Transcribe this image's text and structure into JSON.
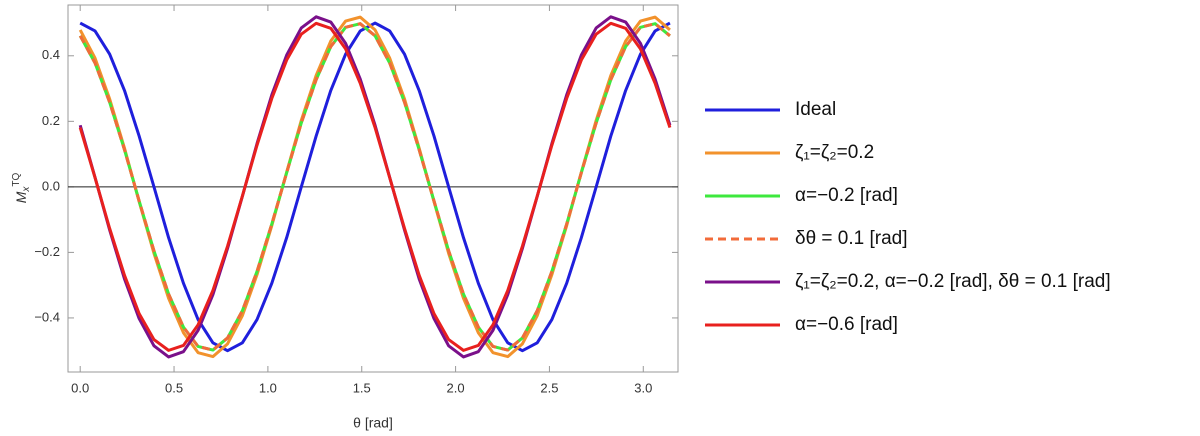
{
  "chart_data": {
    "type": "line",
    "xlabel": "θ [rad]",
    "ylabel": {
      "base": "M",
      "sub": "x",
      "sup": "TQ"
    },
    "xlim": [
      -0.065,
      3.185
    ],
    "ylim": [
      -0.565,
      0.555
    ],
    "xticks": [
      {
        "value": 0,
        "label": "0.0"
      },
      0.5,
      {
        "value": 1,
        "label": "1.0"
      },
      1.5,
      {
        "value": 2,
        "label": "2.0"
      },
      2.5,
      {
        "value": 3,
        "label": "3.0"
      }
    ],
    "yticks": [
      {
        "value": -0.4,
        "label": "−0.4"
      },
      {
        "value": -0.2,
        "label": "−0.2"
      },
      {
        "value": 0,
        "label": "0.0"
      },
      0.2,
      0.4
    ],
    "x": [
      0,
      0.079,
      0.157,
      0.236,
      0.314,
      0.393,
      0.471,
      0.55,
      0.628,
      0.707,
      0.785,
      0.864,
      0.942,
      1.021,
      1.1,
      1.178,
      1.257,
      1.335,
      1.414,
      1.492,
      1.571,
      1.649,
      1.728,
      1.806,
      1.885,
      1.963,
      2.042,
      2.121,
      2.199,
      2.278,
      2.356,
      2.435,
      2.513,
      2.592,
      2.67,
      2.749,
      2.827,
      2.906,
      2.985,
      3.063,
      3.142
    ],
    "series": [
      {
        "name": "Ideal",
        "color": "#1f1fdc",
        "dash": false,
        "values": [
          0.5,
          0.476,
          0.405,
          0.294,
          0.155,
          0,
          -0.155,
          -0.294,
          -0.405,
          -0.476,
          -0.5,
          -0.476,
          -0.405,
          -0.294,
          -0.155,
          0,
          0.155,
          0.294,
          0.405,
          0.476,
          0.5,
          0.476,
          0.405,
          0.294,
          0.155,
          0,
          -0.155,
          -0.294,
          -0.405,
          -0.476,
          -0.5,
          -0.476,
          -0.405,
          -0.294,
          -0.155,
          0,
          0.155,
          0.294,
          0.405,
          0.476,
          0.5
        ]
      },
      {
        "name": "ζ₁=ζ₂=0.2",
        "color": "#f2922c",
        "dash": false,
        "values": [
          0.479,
          0.393,
          0.268,
          0.118,
          -0.045,
          -0.203,
          -0.34,
          -0.445,
          -0.506,
          -0.518,
          -0.479,
          -0.393,
          -0.268,
          -0.118,
          0.045,
          0.203,
          0.34,
          0.445,
          0.506,
          0.518,
          0.479,
          0.393,
          0.268,
          0.118,
          -0.045,
          -0.203,
          -0.34,
          -0.445,
          -0.506,
          -0.518,
          -0.479,
          -0.393,
          -0.268,
          -0.118,
          0.045,
          0.203,
          0.34,
          0.445,
          0.506,
          0.518,
          0.479
        ]
      },
      {
        "name": "α=−0.2 [rad]",
        "color": "#3ee83e",
        "dash": false,
        "values": [
          0.461,
          0.378,
          0.258,
          0.113,
          -0.043,
          -0.195,
          -0.327,
          -0.428,
          -0.487,
          -0.498,
          -0.461,
          -0.378,
          -0.258,
          -0.113,
          0.043,
          0.195,
          0.327,
          0.428,
          0.487,
          0.498,
          0.461,
          0.378,
          0.258,
          0.113,
          -0.043,
          -0.195,
          -0.327,
          -0.428,
          -0.487,
          -0.498,
          -0.461,
          -0.378,
          -0.258,
          -0.113,
          0.043,
          0.195,
          0.327,
          0.428,
          0.487,
          0.498,
          0.461
        ]
      },
      {
        "name": " δθ = 0.1 [rad]",
        "color": "#f26b3a",
        "dash": true,
        "values": [
          0.461,
          0.378,
          0.258,
          0.113,
          -0.043,
          -0.195,
          -0.327,
          -0.428,
          -0.487,
          -0.498,
          -0.461,
          -0.378,
          -0.258,
          -0.113,
          0.043,
          0.195,
          0.327,
          0.428,
          0.487,
          0.498,
          0.461,
          0.378,
          0.258,
          0.113,
          -0.043,
          -0.195,
          -0.327,
          -0.428,
          -0.487,
          -0.498,
          -0.461,
          -0.378,
          -0.258,
          -0.113,
          0.043,
          0.195,
          0.327,
          0.428,
          0.487,
          0.498,
          0.461
        ]
      },
      {
        "name": "ζ₁=ζ₂=0.2, α=−0.2 [rad], δθ = 0.1 [rad]",
        "color": "#7a108a",
        "dash": false,
        "values": [
          0.188,
          0.029,
          -0.132,
          -0.281,
          -0.402,
          -0.485,
          -0.519,
          -0.503,
          -0.438,
          -0.329,
          -0.188,
          -0.029,
          0.132,
          0.281,
          0.402,
          0.485,
          0.519,
          0.503,
          0.438,
          0.329,
          0.188,
          0.029,
          -0.132,
          -0.281,
          -0.402,
          -0.485,
          -0.519,
          -0.503,
          -0.438,
          -0.329,
          -0.188,
          -0.029,
          0.132,
          0.281,
          0.402,
          0.485,
          0.519,
          0.503,
          0.438,
          0.329,
          0.188
        ]
      },
      {
        "name": "α=−0.6 [rad]",
        "color": "#e8201e",
        "dash": false,
        "values": [
          0.181,
          0.028,
          -0.127,
          -0.27,
          -0.387,
          -0.466,
          -0.499,
          -0.484,
          -0.421,
          -0.316,
          -0.181,
          -0.028,
          0.127,
          0.27,
          0.387,
          0.466,
          0.499,
          0.484,
          0.421,
          0.316,
          0.181,
          0.028,
          -0.127,
          -0.27,
          -0.387,
          -0.466,
          -0.499,
          -0.484,
          -0.421,
          -0.316,
          -0.181,
          -0.028,
          0.127,
          0.27,
          0.387,
          0.466,
          0.499,
          0.484,
          0.421,
          0.316,
          0.181
        ]
      }
    ]
  }
}
